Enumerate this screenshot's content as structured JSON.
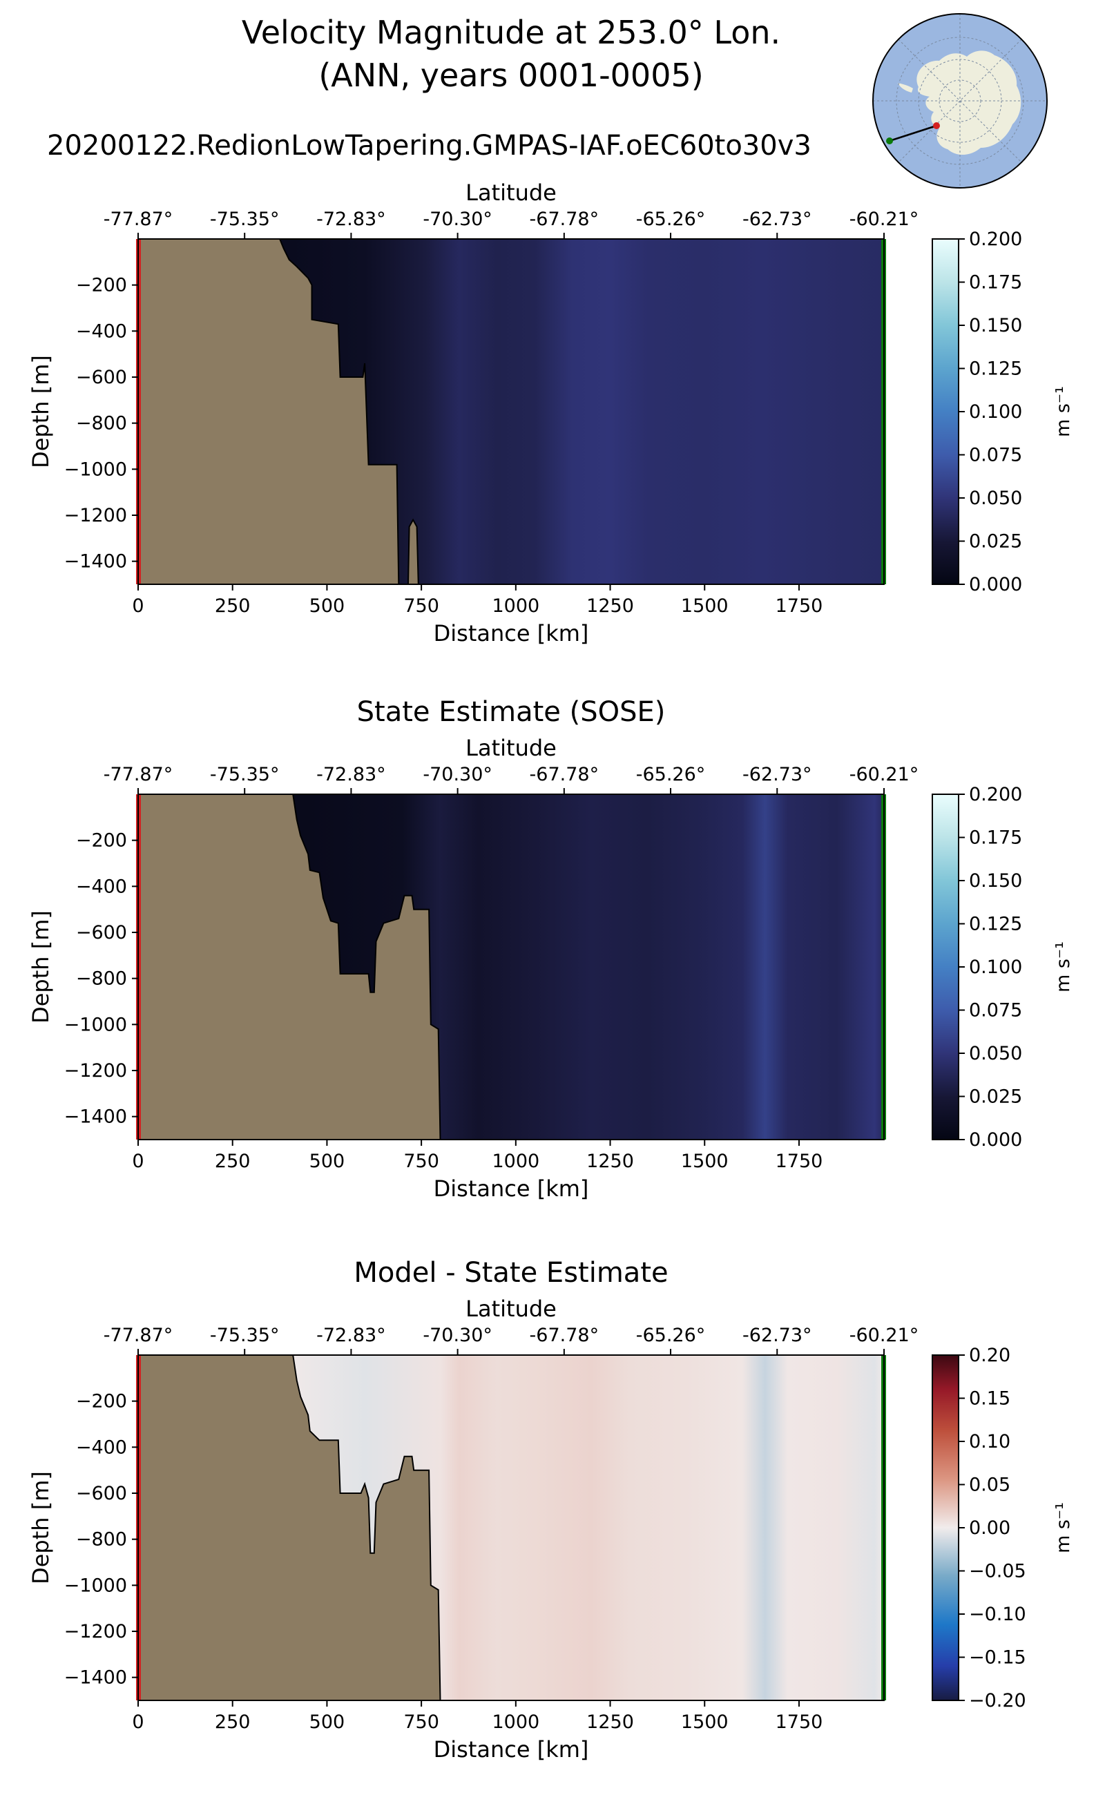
{
  "title": {
    "line1": "Velocity Magnitude at 253.0° Lon.",
    "line2": "(ANN, years 0001-0005)",
    "run_name": "20200122.RedionLowTapering.GMPAS-IAF.oEC60to30v3"
  },
  "colors": {
    "land": "#8c7c62",
    "start_marker": "#d42020",
    "end_marker": "#0a7a0a",
    "ocean_map": "#9bb7e0",
    "continent_map": "#eeeedd"
  },
  "chart_data": [
    {
      "type": "heatmap",
      "title": "",
      "xlabel": "Distance [km]",
      "ylabel": "Depth [m]",
      "top_xlabel": "Latitude",
      "xlim": [
        0,
        1975
      ],
      "ylim": [
        -1500,
        0
      ],
      "x_ticks": [
        "0",
        "250",
        "500",
        "750",
        "1000",
        "1250",
        "1500",
        "1750"
      ],
      "x_tick_values": [
        0,
        250,
        500,
        750,
        1000,
        1250,
        1500,
        1750
      ],
      "y_ticks": [
        "−200",
        "−400",
        "−600",
        "−800",
        "−1000",
        "−1200",
        "−1400"
      ],
      "y_tick_values": [
        -200,
        -400,
        -600,
        -800,
        -1000,
        -1200,
        -1400
      ],
      "lat_ticks": [
        "-77.87°",
        "-75.35°",
        "-72.83°",
        "-70.30°",
        "-67.78°",
        "-65.26°",
        "-62.73°",
        "-60.21°"
      ],
      "lat_tick_values": [
        0,
        282,
        564,
        846,
        1128,
        1410,
        1692,
        1975
      ],
      "colorbar": {
        "label": "m s⁻¹",
        "ticks": [
          "0.000",
          "0.025",
          "0.050",
          "0.075",
          "0.100",
          "0.125",
          "0.150",
          "0.175",
          "0.200"
        ],
        "range": [
          0,
          0.2
        ],
        "colormap": "ice"
      },
      "field_profile": [
        {
          "x": 0,
          "v": 0.005
        },
        {
          "x": 400,
          "v": 0.008
        },
        {
          "x": 600,
          "v": 0.012
        },
        {
          "x": 760,
          "v": 0.028
        },
        {
          "x": 850,
          "v": 0.04
        },
        {
          "x": 950,
          "v": 0.034
        },
        {
          "x": 1050,
          "v": 0.036
        },
        {
          "x": 1150,
          "v": 0.048
        },
        {
          "x": 1250,
          "v": 0.05
        },
        {
          "x": 1350,
          "v": 0.045
        },
        {
          "x": 1500,
          "v": 0.044
        },
        {
          "x": 1650,
          "v": 0.046
        },
        {
          "x": 1800,
          "v": 0.044
        },
        {
          "x": 1975,
          "v": 0.042
        }
      ],
      "bathymetry": [
        {
          "x": 0,
          "d": 0
        },
        {
          "x": 375,
          "d": 0
        },
        {
          "x": 385,
          "d": -40
        },
        {
          "x": 400,
          "d": -90
        },
        {
          "x": 420,
          "d": -120
        },
        {
          "x": 450,
          "d": -170
        },
        {
          "x": 460,
          "d": -200
        },
        {
          "x": 460,
          "d": -350
        },
        {
          "x": 530,
          "d": -370
        },
        {
          "x": 535,
          "d": -600
        },
        {
          "x": 595,
          "d": -600
        },
        {
          "x": 600,
          "d": -540
        },
        {
          "x": 610,
          "d": -980
        },
        {
          "x": 685,
          "d": -980
        },
        {
          "x": 690,
          "d": -1500
        },
        {
          "x": 0,
          "d": -1500
        }
      ],
      "bathymetry_extra": [
        {
          "x": 715,
          "d": -1500
        },
        {
          "x": 718,
          "d": -1250
        },
        {
          "x": 728,
          "d": -1220
        },
        {
          "x": 738,
          "d": -1250
        },
        {
          "x": 742,
          "d": -1500
        }
      ]
    },
    {
      "type": "heatmap",
      "title": "State Estimate (SOSE)",
      "xlabel": "Distance [km]",
      "ylabel": "Depth [m]",
      "top_xlabel": "Latitude",
      "xlim": [
        0,
        1975
      ],
      "ylim": [
        -1500,
        0
      ],
      "x_ticks": [
        "0",
        "250",
        "500",
        "750",
        "1000",
        "1250",
        "1500",
        "1750"
      ],
      "x_tick_values": [
        0,
        250,
        500,
        750,
        1000,
        1250,
        1500,
        1750
      ],
      "y_ticks": [
        "−200",
        "−400",
        "−600",
        "−800",
        "−1000",
        "−1200",
        "−1400"
      ],
      "y_tick_values": [
        -200,
        -400,
        -600,
        -800,
        -1000,
        -1200,
        -1400
      ],
      "lat_ticks": [
        "-77.87°",
        "-75.35°",
        "-72.83°",
        "-70.30°",
        "-67.78°",
        "-65.26°",
        "-62.73°",
        "-60.21°"
      ],
      "lat_tick_values": [
        0,
        282,
        564,
        846,
        1128,
        1410,
        1692,
        1975
      ],
      "colorbar": {
        "label": "m s⁻¹",
        "ticks": [
          "0.000",
          "0.025",
          "0.050",
          "0.075",
          "0.100",
          "0.125",
          "0.150",
          "0.175",
          "0.200"
        ],
        "range": [
          0,
          0.2
        ],
        "colormap": "ice"
      },
      "field_profile": [
        {
          "x": 0,
          "v": 0.005
        },
        {
          "x": 450,
          "v": 0.006
        },
        {
          "x": 700,
          "v": 0.01
        },
        {
          "x": 800,
          "v": 0.028
        },
        {
          "x": 900,
          "v": 0.018
        },
        {
          "x": 1050,
          "v": 0.026
        },
        {
          "x": 1200,
          "v": 0.032
        },
        {
          "x": 1350,
          "v": 0.03
        },
        {
          "x": 1500,
          "v": 0.035
        },
        {
          "x": 1600,
          "v": 0.04
        },
        {
          "x": 1660,
          "v": 0.058
        },
        {
          "x": 1720,
          "v": 0.04
        },
        {
          "x": 1850,
          "v": 0.036
        },
        {
          "x": 1950,
          "v": 0.05
        },
        {
          "x": 1975,
          "v": 0.04
        }
      ],
      "bathymetry": [
        {
          "x": 0,
          "d": 0
        },
        {
          "x": 410,
          "d": 0
        },
        {
          "x": 420,
          "d": -110
        },
        {
          "x": 430,
          "d": -180
        },
        {
          "x": 450,
          "d": -260
        },
        {
          "x": 455,
          "d": -330
        },
        {
          "x": 480,
          "d": -340
        },
        {
          "x": 490,
          "d": -450
        },
        {
          "x": 510,
          "d": -550
        },
        {
          "x": 530,
          "d": -560
        },
        {
          "x": 535,
          "d": -780
        },
        {
          "x": 610,
          "d": -780
        },
        {
          "x": 615,
          "d": -860
        },
        {
          "x": 625,
          "d": -860
        },
        {
          "x": 630,
          "d": -640
        },
        {
          "x": 650,
          "d": -560
        },
        {
          "x": 690,
          "d": -540
        },
        {
          "x": 705,
          "d": -440
        },
        {
          "x": 725,
          "d": -440
        },
        {
          "x": 730,
          "d": -500
        },
        {
          "x": 770,
          "d": -500
        },
        {
          "x": 775,
          "d": -1000
        },
        {
          "x": 795,
          "d": -1020
        },
        {
          "x": 800,
          "d": -1500
        },
        {
          "x": 0,
          "d": -1500
        }
      ]
    },
    {
      "type": "heatmap",
      "title": "Model - State Estimate",
      "xlabel": "Distance [km]",
      "ylabel": "Depth [m]",
      "top_xlabel": "Latitude",
      "xlim": [
        0,
        1975
      ],
      "ylim": [
        -1500,
        0
      ],
      "x_ticks": [
        "0",
        "250",
        "500",
        "750",
        "1000",
        "1250",
        "1500",
        "1750"
      ],
      "x_tick_values": [
        0,
        250,
        500,
        750,
        1000,
        1250,
        1500,
        1750
      ],
      "y_ticks": [
        "−200",
        "−400",
        "−600",
        "−800",
        "−1000",
        "−1200",
        "−1400"
      ],
      "y_tick_values": [
        -200,
        -400,
        -600,
        -800,
        -1000,
        -1200,
        -1400
      ],
      "lat_ticks": [
        "-77.87°",
        "-75.35°",
        "-72.83°",
        "-70.30°",
        "-67.78°",
        "-65.26°",
        "-62.73°",
        "-60.21°"
      ],
      "lat_tick_values": [
        0,
        282,
        564,
        846,
        1128,
        1410,
        1692,
        1975
      ],
      "colorbar": {
        "label": "m s⁻¹",
        "ticks": [
          "−0.20",
          "−0.15",
          "−0.10",
          "−0.05",
          "0.00",
          "0.05",
          "0.10",
          "0.15",
          "0.20"
        ],
        "range": [
          -0.2,
          0.2
        ],
        "colormap": "balance"
      },
      "field_profile": [
        {
          "x": 400,
          "v": 0.002
        },
        {
          "x": 600,
          "v": -0.008
        },
        {
          "x": 800,
          "v": 0.006
        },
        {
          "x": 850,
          "v": 0.016
        },
        {
          "x": 950,
          "v": 0.01
        },
        {
          "x": 1050,
          "v": 0.012
        },
        {
          "x": 1200,
          "v": 0.016
        },
        {
          "x": 1300,
          "v": 0.01
        },
        {
          "x": 1450,
          "v": 0.008
        },
        {
          "x": 1600,
          "v": 0.004
        },
        {
          "x": 1660,
          "v": -0.02
        },
        {
          "x": 1720,
          "v": 0.003
        },
        {
          "x": 1850,
          "v": 0.005
        },
        {
          "x": 1950,
          "v": -0.008
        },
        {
          "x": 1975,
          "v": 0.002
        }
      ],
      "bathymetry": [
        {
          "x": 0,
          "d": 0
        },
        {
          "x": 410,
          "d": 0
        },
        {
          "x": 420,
          "d": -110
        },
        {
          "x": 430,
          "d": -180
        },
        {
          "x": 450,
          "d": -260
        },
        {
          "x": 455,
          "d": -330
        },
        {
          "x": 480,
          "d": -370
        },
        {
          "x": 530,
          "d": -370
        },
        {
          "x": 535,
          "d": -600
        },
        {
          "x": 590,
          "d": -600
        },
        {
          "x": 600,
          "d": -560
        },
        {
          "x": 610,
          "d": -620
        },
        {
          "x": 615,
          "d": -860
        },
        {
          "x": 625,
          "d": -860
        },
        {
          "x": 630,
          "d": -640
        },
        {
          "x": 650,
          "d": -560
        },
        {
          "x": 690,
          "d": -540
        },
        {
          "x": 705,
          "d": -440
        },
        {
          "x": 725,
          "d": -440
        },
        {
          "x": 730,
          "d": -500
        },
        {
          "x": 770,
          "d": -500
        },
        {
          "x": 775,
          "d": -1000
        },
        {
          "x": 795,
          "d": -1020
        },
        {
          "x": 800,
          "d": -1500
        },
        {
          "x": 0,
          "d": -1500
        }
      ]
    }
  ]
}
